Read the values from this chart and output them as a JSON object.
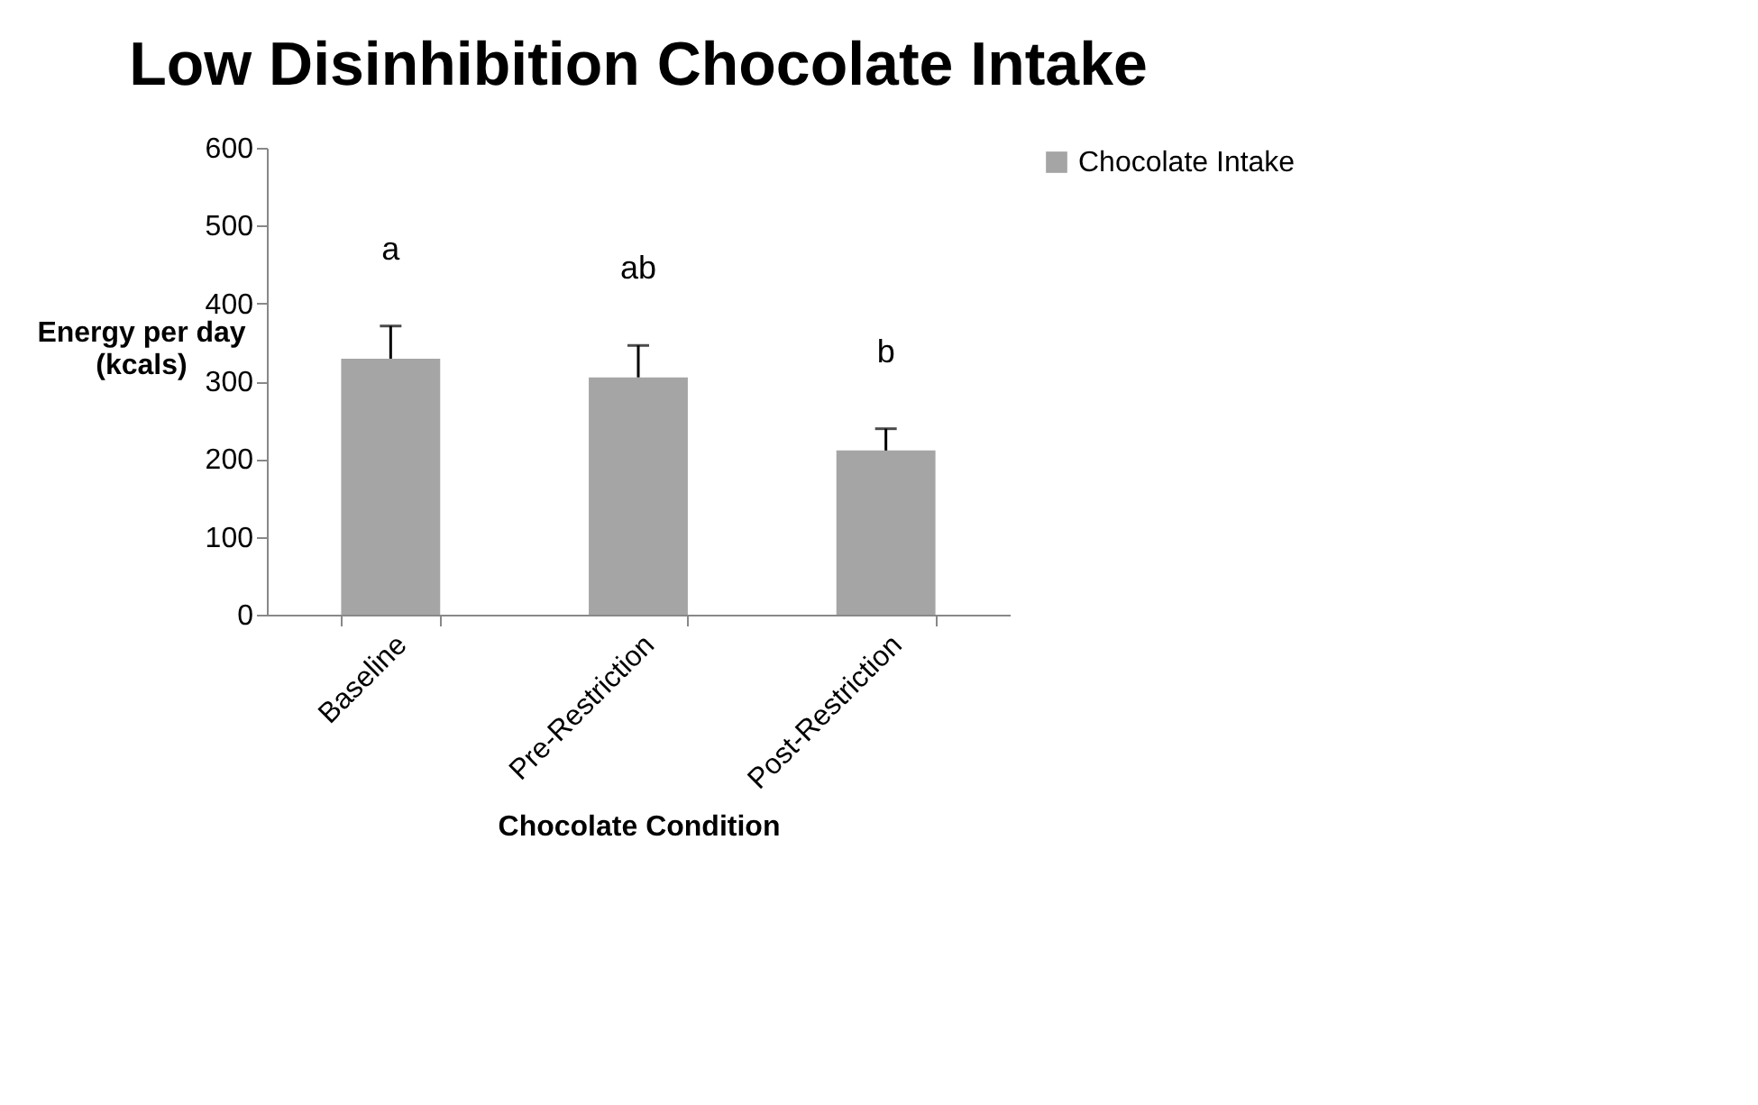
{
  "chart_data": {
    "type": "bar",
    "title": "Low Disinhibition Chocolate Intake",
    "xlabel": "Chocolate Condition",
    "ylabel": "Energy per day\n(kcals)",
    "categories": [
      "Baseline",
      "Pre-Restriction",
      "Post-Restriction"
    ],
    "series": [
      {
        "name": "Chocolate Intake",
        "color": "#a5a5a5",
        "values": [
          329,
          305,
          211
        ],
        "errors": [
          [
            329,
            371
          ],
          [
            305,
            346
          ],
          [
            211,
            239
          ]
        ]
      }
    ],
    "annotations": [
      "a",
      "ab",
      "b"
    ],
    "ylim": [
      0,
      600
    ],
    "yticks": [
      0,
      100,
      200,
      300,
      400,
      500,
      600
    ],
    "grid": false,
    "legend": "right"
  }
}
